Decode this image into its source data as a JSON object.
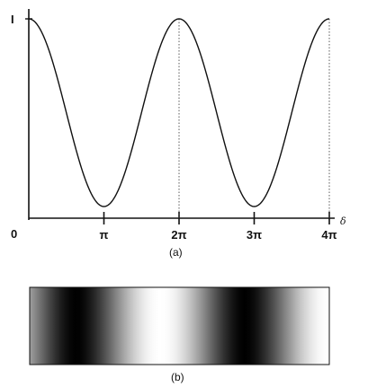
{
  "figure": {
    "panel_a": {
      "caption": "(a)",
      "y_tick_top": "I",
      "origin_label": "0",
      "x_axis_label": "δ",
      "x_ticks": [
        "π",
        "2π",
        "3π",
        "4π"
      ],
      "curve": "I = cos²(δ/2)",
      "x_range": [
        0,
        12.566
      ],
      "y_range": [
        0,
        1
      ],
      "dotted_guides_at": [
        "2π",
        "4π"
      ]
    },
    "panel_b": {
      "caption": "(b)",
      "description_colors": {
        "bright": "#ffffff",
        "dark": "#000000"
      }
    },
    "colors": {
      "line": "#111111",
      "background": "#ffffff"
    }
  }
}
